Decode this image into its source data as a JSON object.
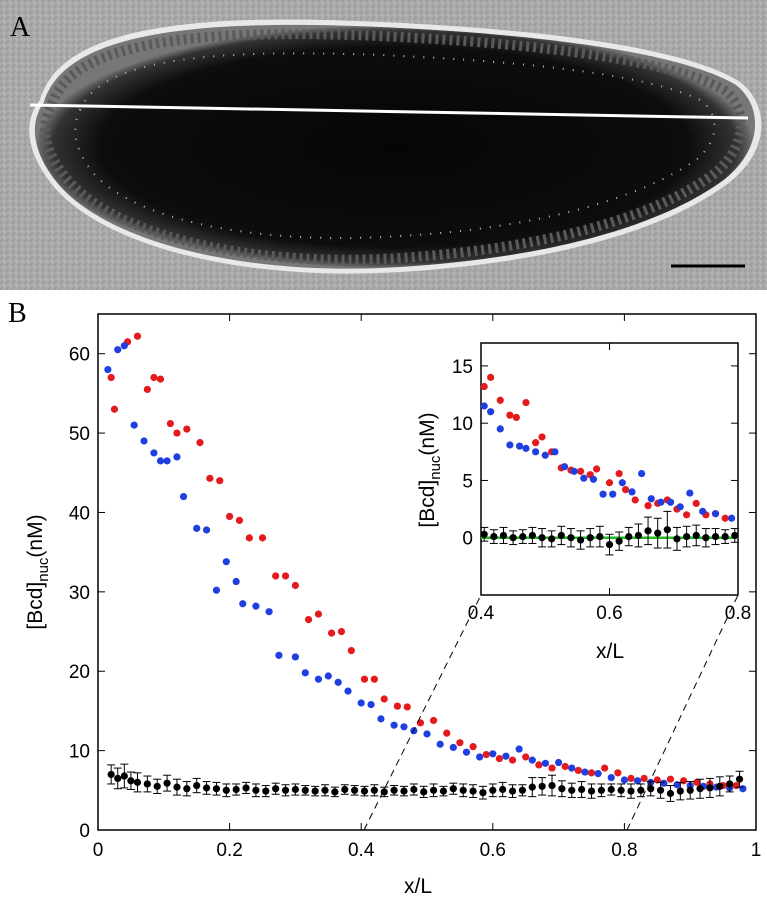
{
  "panel_a": {
    "letter": "A",
    "description_icon": "embryo-micrograph"
  },
  "panel_b": {
    "letter": "B"
  },
  "colors": {
    "red": "#e41a1c",
    "blue": "#1f3fe0",
    "black": "#000000",
    "green": "#22bb22"
  },
  "chart_data": [
    {
      "type": "scatter",
      "name": "main",
      "xlabel": "x/L",
      "ylabel_main": "[Bcd]",
      "ylabel_sub": "nuc",
      "ylabel_unit": "(nM)",
      "xlim": [
        0,
        1
      ],
      "ylim": [
        0,
        65
      ],
      "xticks": [
        0,
        0.2,
        0.4,
        0.6,
        0.8,
        1
      ],
      "xtick_labels": [
        "0",
        "0.2",
        "0.4",
        "0.6",
        "0.8",
        "1"
      ],
      "yticks": [
        0,
        10,
        20,
        30,
        40,
        50,
        60
      ],
      "ytick_labels": [
        "0",
        "10",
        "20",
        "30",
        "40",
        "50",
        "60"
      ],
      "series": [
        {
          "name": "red",
          "color": "#e41a1c",
          "x": [
            0.02,
            0.025,
            0.045,
            0.06,
            0.075,
            0.085,
            0.095,
            0.11,
            0.12,
            0.135,
            0.155,
            0.17,
            0.185,
            0.2,
            0.215,
            0.23,
            0.25,
            0.27,
            0.285,
            0.3,
            0.32,
            0.335,
            0.355,
            0.37,
            0.385,
            0.405,
            0.42,
            0.435,
            0.455,
            0.47,
            0.49,
            0.51,
            0.53,
            0.55,
            0.57,
            0.59,
            0.61,
            0.63,
            0.65,
            0.67,
            0.69,
            0.71,
            0.73,
            0.75,
            0.77,
            0.79,
            0.81,
            0.83,
            0.85,
            0.87,
            0.89,
            0.91,
            0.93,
            0.95,
            0.97
          ],
          "y": [
            57,
            53,
            61.5,
            62.2,
            55.5,
            57,
            56.8,
            51.2,
            50,
            50.5,
            48.8,
            44.3,
            44,
            39.5,
            39,
            36.8,
            36.8,
            32,
            32,
            30.8,
            26.5,
            27.2,
            24.8,
            25,
            22.6,
            19,
            19,
            16.5,
            15.6,
            15.5,
            13.5,
            13.8,
            12.2,
            11,
            10.5,
            9.5,
            9,
            8.8,
            9.2,
            8.2,
            7.8,
            8,
            7.5,
            7.2,
            7.8,
            7.2,
            6.5,
            6.5,
            6.3,
            6.4,
            6.2,
            6,
            5.8,
            5.6,
            5.6
          ]
        },
        {
          "name": "blue",
          "color": "#1f3fe0",
          "x": [
            0.015,
            0.03,
            0.04,
            0.055,
            0.07,
            0.085,
            0.095,
            0.105,
            0.12,
            0.13,
            0.15,
            0.165,
            0.18,
            0.195,
            0.21,
            0.22,
            0.24,
            0.26,
            0.275,
            0.3,
            0.315,
            0.335,
            0.35,
            0.365,
            0.38,
            0.4,
            0.415,
            0.43,
            0.45,
            0.465,
            0.48,
            0.5,
            0.52,
            0.54,
            0.56,
            0.58,
            0.6,
            0.62,
            0.64,
            0.66,
            0.68,
            0.7,
            0.72,
            0.74,
            0.76,
            0.78,
            0.8,
            0.82,
            0.84,
            0.86,
            0.88,
            0.9,
            0.92,
            0.94,
            0.96,
            0.98
          ],
          "y": [
            58,
            60.5,
            61,
            51,
            49,
            47.5,
            46.5,
            46.5,
            47,
            42,
            38,
            37.8,
            30.2,
            33.8,
            31.3,
            28.5,
            28.2,
            27.5,
            22,
            21.8,
            19.8,
            19,
            19.4,
            18.6,
            17.5,
            16,
            15.8,
            14,
            13.2,
            13,
            12.5,
            12.1,
            10.8,
            10.4,
            9.8,
            9.2,
            9.6,
            9.3,
            10.2,
            8.8,
            8.4,
            8.5,
            7.8,
            7.3,
            7.1,
            6.6,
            6.3,
            6.2,
            6,
            5.9,
            5.7,
            5.6,
            5.5,
            5.4,
            5.3,
            5.2
          ]
        },
        {
          "name": "black",
          "color": "#000000",
          "x": [
            0.02,
            0.03,
            0.04,
            0.05,
            0.06,
            0.075,
            0.09,
            0.105,
            0.12,
            0.135,
            0.15,
            0.165,
            0.18,
            0.195,
            0.21,
            0.225,
            0.24,
            0.255,
            0.27,
            0.285,
            0.3,
            0.315,
            0.33,
            0.345,
            0.36,
            0.375,
            0.39,
            0.405,
            0.42,
            0.435,
            0.45,
            0.465,
            0.48,
            0.495,
            0.51,
            0.525,
            0.54,
            0.555,
            0.57,
            0.585,
            0.6,
            0.615,
            0.63,
            0.645,
            0.66,
            0.675,
            0.69,
            0.705,
            0.72,
            0.735,
            0.75,
            0.765,
            0.78,
            0.795,
            0.81,
            0.825,
            0.84,
            0.855,
            0.87,
            0.885,
            0.9,
            0.915,
            0.93,
            0.945,
            0.96,
            0.975
          ],
          "y": [
            7,
            6.5,
            6.8,
            6.2,
            6,
            5.8,
            5.5,
            5.9,
            5.4,
            5.2,
            5.6,
            5.3,
            5.2,
            5.0,
            5.1,
            5.3,
            5.0,
            4.9,
            5.2,
            5.0,
            5.1,
            5.0,
            4.9,
            5.0,
            4.8,
            5.1,
            5.0,
            4.9,
            5.0,
            4.8,
            5.0,
            4.9,
            5.1,
            4.8,
            5.0,
            4.9,
            5.2,
            5.0,
            4.9,
            4.7,
            5.0,
            5.1,
            4.9,
            5.0,
            5.4,
            5.5,
            5.6,
            5.2,
            5.0,
            5.1,
            4.9,
            5.0,
            5.1,
            5.0,
            4.9,
            5.0,
            5.2,
            5.0,
            4.6,
            4.9,
            5.0,
            5.2,
            5.3,
            5.5,
            5.8,
            6.4
          ],
          "err": [
            1.2,
            1.3,
            1.5,
            1.1,
            1.2,
            1.0,
            0.9,
            1.0,
            1.0,
            0.9,
            0.9,
            0.8,
            0.8,
            0.8,
            0.7,
            0.7,
            0.8,
            0.7,
            0.7,
            0.7,
            0.7,
            0.6,
            0.6,
            0.7,
            0.6,
            0.6,
            0.6,
            0.6,
            0.7,
            0.6,
            0.6,
            0.6,
            0.7,
            0.7,
            0.8,
            0.6,
            0.7,
            0.8,
            0.8,
            0.8,
            0.8,
            0.9,
            0.8,
            0.7,
            1.2,
            1.1,
            1.3,
            1.0,
            0.9,
            1.0,
            0.9,
            0.8,
            0.7,
            0.8,
            0.9,
            0.8,
            0.9,
            1.0,
            1.0,
            1.1,
            1.1,
            1.2,
            1.2,
            1.2,
            1.0,
            1.0
          ]
        }
      ]
    },
    {
      "type": "scatter",
      "name": "inset",
      "xlabel": "x/L",
      "ylabel_main": "[Bcd]",
      "ylabel_sub": "nuc",
      "ylabel_unit": "(nM)",
      "xlim": [
        0.4,
        0.8
      ],
      "ylim": [
        -5,
        17
      ],
      "xticks": [
        0.4,
        0.6,
        0.8
      ],
      "xtick_labels": [
        "0.4",
        "0.6",
        "0.8"
      ],
      "yticks": [
        0,
        5,
        10,
        15
      ],
      "ytick_labels": [
        "0",
        "5",
        "10",
        "15"
      ],
      "series": [
        {
          "name": "red",
          "color": "#e41a1c",
          "x": [
            0.405,
            0.415,
            0.43,
            0.445,
            0.455,
            0.47,
            0.485,
            0.495,
            0.51,
            0.525,
            0.54,
            0.555,
            0.57,
            0.58,
            0.6,
            0.615,
            0.625,
            0.64,
            0.66,
            0.675,
            0.69,
            0.705,
            0.72,
            0.735,
            0.75,
            0.765,
            0.78
          ],
          "y": [
            13.2,
            14.0,
            12.0,
            10.7,
            10.5,
            11.8,
            8.3,
            8.8,
            7.5,
            6.1,
            5.9,
            5.8,
            5.5,
            6.0,
            4.8,
            5.6,
            4.2,
            3.3,
            2.8,
            3.0,
            3.3,
            2.5,
            2.0,
            3.0,
            2.0,
            2.1,
            1.7
          ]
        },
        {
          "name": "blue",
          "color": "#1f3fe0",
          "x": [
            0.405,
            0.415,
            0.43,
            0.445,
            0.46,
            0.47,
            0.485,
            0.5,
            0.515,
            0.53,
            0.545,
            0.56,
            0.575,
            0.59,
            0.605,
            0.62,
            0.635,
            0.65,
            0.665,
            0.68,
            0.695,
            0.71,
            0.725,
            0.745,
            0.765,
            0.79
          ],
          "y": [
            11.5,
            11.0,
            9.5,
            8.1,
            8.0,
            7.8,
            7.5,
            7.2,
            7.5,
            6.2,
            5.8,
            5.2,
            5.1,
            3.8,
            3.8,
            4.8,
            4.0,
            5.6,
            3.4,
            3.1,
            3.1,
            2.7,
            3.9,
            2.3,
            2.1,
            1.7
          ]
        },
        {
          "name": "black",
          "color": "#000000",
          "x": [
            0.405,
            0.42,
            0.435,
            0.45,
            0.465,
            0.48,
            0.495,
            0.51,
            0.525,
            0.54,
            0.555,
            0.57,
            0.585,
            0.6,
            0.615,
            0.63,
            0.645,
            0.66,
            0.675,
            0.69,
            0.705,
            0.72,
            0.735,
            0.75,
            0.765,
            0.78,
            0.795
          ],
          "y": [
            0.3,
            0.1,
            0.2,
            0.0,
            0.1,
            0.2,
            0.0,
            -0.1,
            0.2,
            0.0,
            -0.2,
            0.0,
            0.1,
            -0.6,
            -0.3,
            0.1,
            0.2,
            0.6,
            0.4,
            0.7,
            -0.1,
            0.1,
            0.2,
            0.0,
            0.1,
            0.1,
            0.2
          ],
          "err": [
            0.6,
            0.6,
            0.7,
            0.6,
            0.6,
            0.7,
            0.8,
            0.7,
            0.8,
            0.8,
            0.8,
            0.8,
            0.9,
            0.9,
            0.8,
            0.8,
            1.0,
            1.2,
            1.3,
            1.6,
            1.0,
            0.9,
            0.9,
            0.8,
            0.7,
            0.6,
            0.6
          ]
        }
      ],
      "reference_line": {
        "y": 0,
        "color": "#22bb22"
      }
    }
  ]
}
